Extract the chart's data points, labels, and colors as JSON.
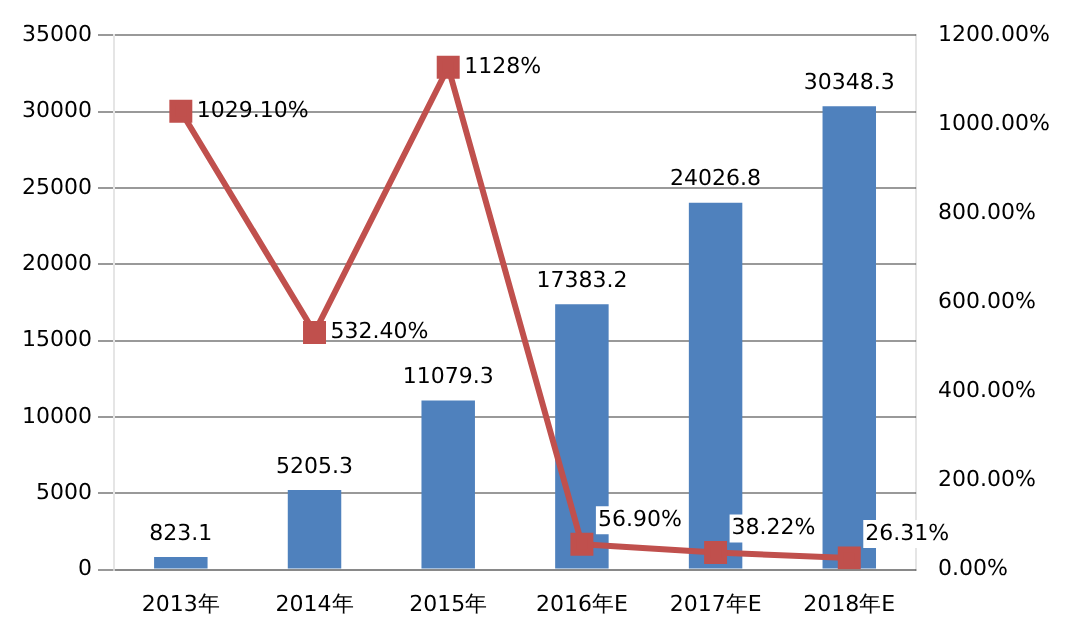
{
  "chart_data": {
    "type": "bar",
    "categories": [
      "2013年",
      "2014年",
      "2015年",
      "2016年E",
      "2017年E",
      "2018年E"
    ],
    "series": [
      {
        "color": "#4f81bd",
        "values": [
          823.1,
          5205.3,
          11079.3,
          17383.2,
          24026.8,
          30348.3
        ],
        "value_labels": [
          "823.1",
          "5205.3",
          "11079.3",
          "17383.2",
          "24026.8",
          "30348.3"
        ]
      },
      {
        "type": "line",
        "axis": "y2",
        "color": "#c0504d",
        "marker": "square",
        "values": [
          1029.1,
          532.4,
          1128,
          56.9,
          38.22,
          26.31
        ],
        "value_labels": [
          "1029.10%",
          "532.40%",
          "1128%",
          "56.90%",
          "38.22%",
          "26.31%"
        ]
      }
    ],
    "ylim": [
      0,
      35000
    ],
    "yticks": [
      0,
      5000,
      10000,
      15000,
      20000,
      25000,
      30000,
      35000
    ],
    "y2lim": [
      0,
      1200
    ],
    "y2ticks": [
      {
        "value": 0,
        "label": "0.00%"
      },
      {
        "value": 200,
        "label": "200.00%"
      },
      {
        "value": 400,
        "label": "400.00%"
      },
      {
        "value": 600,
        "label": "600.00%"
      },
      {
        "value": 800,
        "label": "800.00%"
      },
      {
        "value": 1000,
        "label": "1000.00%"
      },
      {
        "value": 1200,
        "label": "1200.00%"
      }
    ],
    "grid": "y",
    "legend": false
  }
}
